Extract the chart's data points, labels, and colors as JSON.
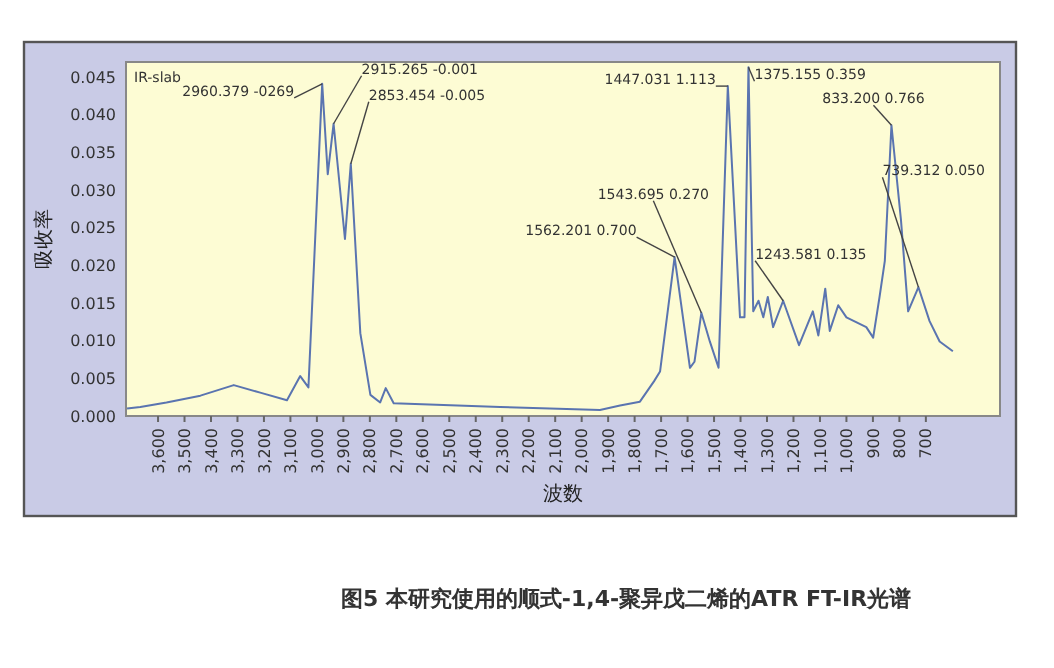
{
  "chart_data": {
    "type": "line",
    "title": "图5  本研究使用的顺式-1,4-聚异戊二烯的ATR FT-IR光谱",
    "xlabel": "波数",
    "ylabel": "吸收率",
    "xlim": [
      3721,
      420
    ],
    "ylim": [
      0,
      0.047
    ],
    "xticks": [
      {
        "value": 3600,
        "label": "3,600"
      },
      {
        "value": 3500,
        "label": "3,500"
      },
      {
        "value": 3400,
        "label": "3,400"
      },
      {
        "value": 3300,
        "label": "3,300"
      },
      {
        "value": 3200,
        "label": "3,200"
      },
      {
        "value": 3100,
        "label": "3,100"
      },
      {
        "value": 3000,
        "label": "3,000"
      },
      {
        "value": 2900,
        "label": "2,900"
      },
      {
        "value": 2800,
        "label": "2,800"
      },
      {
        "value": 2700,
        "label": "2,700"
      },
      {
        "value": 2600,
        "label": "2,600"
      },
      {
        "value": 2500,
        "label": "2,500"
      },
      {
        "value": 2400,
        "label": "2,400"
      },
      {
        "value": 2300,
        "label": "2,300"
      },
      {
        "value": 2200,
        "label": "2,200"
      },
      {
        "value": 2100,
        "label": "2,100"
      },
      {
        "value": 2000,
        "label": "2,000"
      },
      {
        "value": 1900,
        "label": "1,900"
      },
      {
        "value": 1800,
        "label": "1,800"
      },
      {
        "value": 1700,
        "label": "1,700"
      },
      {
        "value": 1600,
        "label": "1,600"
      },
      {
        "value": 1500,
        "label": "1,500"
      },
      {
        "value": 1400,
        "label": "1,400"
      },
      {
        "value": 1300,
        "label": "1,300"
      },
      {
        "value": 1200,
        "label": "1,200"
      },
      {
        "value": 1100,
        "label": "1,100"
      },
      {
        "value": 1000,
        "label": "1,000"
      },
      900,
      800,
      700
    ],
    "yticks": [
      {
        "value": 0,
        "label": "0.000"
      },
      {
        "value": 0.005,
        "label": "0.005"
      },
      {
        "value": 0.01,
        "label": "0.010"
      },
      {
        "value": 0.015,
        "label": "0.015"
      },
      {
        "value": 0.02,
        "label": "0.020"
      },
      {
        "value": 0.025,
        "label": "0.025"
      },
      {
        "value": 0.03,
        "label": "0.030"
      },
      {
        "value": 0.035,
        "label": "0.035"
      },
      {
        "value": 0.04,
        "label": "0.040"
      },
      {
        "value": 0.045,
        "label": "0.045"
      }
    ],
    "grid": false,
    "series": [
      {
        "color": "#5a74b0",
        "x": [
          3717,
          3667,
          3568,
          3440,
          3314,
          3214,
          3113,
          3063,
          3032,
          2980,
          2959,
          2937,
          2894,
          2872,
          2836,
          2798,
          2761,
          2740,
          2710,
          2308,
          1931,
          1855,
          1780,
          1727,
          1704,
          1649,
          1591,
          1574,
          1548,
          1516,
          1483,
          1448,
          1402,
          1385,
          1370,
          1352,
          1332,
          1314,
          1297,
          1277,
          1239,
          1179,
          1127,
          1106,
          1080,
          1063,
          1031,
          1000,
          925,
          899,
          875,
          855,
          830,
          794,
          767,
          728,
          686,
          648,
          598
        ],
        "values": [
          0.001,
          0.0012,
          0.0018,
          0.0027,
          0.0041,
          0.0031,
          0.0021,
          0.0053,
          0.0038,
          0.0441,
          0.0321,
          0.0388,
          0.0235,
          0.0335,
          0.011,
          0.0028,
          0.0018,
          0.0037,
          0.0017,
          0.0012,
          0.0008,
          0.0014,
          0.0019,
          0.0046,
          0.0059,
          0.0211,
          0.0064,
          0.0072,
          0.0137,
          0.0099,
          0.0064,
          0.0438,
          0.0131,
          0.0131,
          0.0463,
          0.0139,
          0.0153,
          0.0131,
          0.0158,
          0.0118,
          0.0153,
          0.0094,
          0.0139,
          0.0107,
          0.0169,
          0.0113,
          0.0147,
          0.0131,
          0.0118,
          0.0104,
          0.0158,
          0.0206,
          0.0386,
          0.026,
          0.0139,
          0.0171,
          0.0126,
          0.0099,
          0.0086
        ]
      }
    ],
    "annotations": [
      "IR-slab",
      {
        "text": "2960.379 -0269",
        "x": 2980,
        "y": 0.0441
      },
      {
        "text": "2915.265 -0.001",
        "x": 2937,
        "y": 0.0388
      },
      {
        "text": "2853.454 -0.005",
        "x": 2872,
        "y": 0.0335
      },
      {
        "text": "1562.201 0.700",
        "x": 1649,
        "y": 0.0211
      },
      {
        "text": "1543.695 0.270",
        "x": 1548,
        "y": 0.0137
      },
      {
        "text": "1447.031 1.113",
        "x": 1448,
        "y": 0.0438
      },
      {
        "text": "1375.155 0.359",
        "x": 1370,
        "y": 0.0463
      },
      {
        "text": "833.200 0.766",
        "x": 830,
        "y": 0.0386
      },
      {
        "text": "1243.581 0.135",
        "x": 1239,
        "y": 0.0153
      },
      {
        "text": "739.312 0.050",
        "x": 728,
        "y": 0.0171
      }
    ]
  }
}
